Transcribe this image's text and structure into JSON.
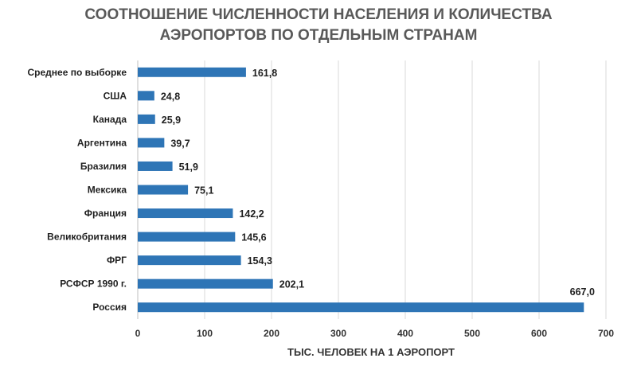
{
  "chart_data": {
    "type": "bar",
    "orientation": "horizontal",
    "title_lines": [
      "СООТНОШЕНИЕ ЧИСЛЕННОСТИ НАСЕЛЕНИЯ И КОЛИЧЕСТВА",
      "АЭРОПОРТОВ ПО ОТДЕЛЬНЫМ СТРАНАМ"
    ],
    "xlabel": "ТЫС. ЧЕЛОВЕК НА 1 АЭРОПОРТ",
    "ylabel": "",
    "xlim": [
      0,
      700
    ],
    "xticks": [
      0,
      100,
      200,
      300,
      400,
      500,
      600,
      700
    ],
    "grid": true,
    "bar_color": "#2e75b6",
    "categories": [
      "Среднее по выборке",
      "США",
      "Канада",
      "Аргентина",
      "Бразилия",
      "Мексика",
      "Франция",
      "Великобритания",
      "ФРГ",
      "РСФСР 1990 г.",
      "Россия"
    ],
    "values": [
      161.8,
      24.8,
      25.9,
      39.7,
      51.9,
      75.1,
      142.2,
      145.6,
      154.3,
      202.1,
      667.0
    ],
    "value_labels": [
      "161,8",
      "24,8",
      "25,9",
      "39,7",
      "51,9",
      "75,1",
      "142,2",
      "145,6",
      "154,3",
      "202,1",
      "667,0"
    ]
  }
}
